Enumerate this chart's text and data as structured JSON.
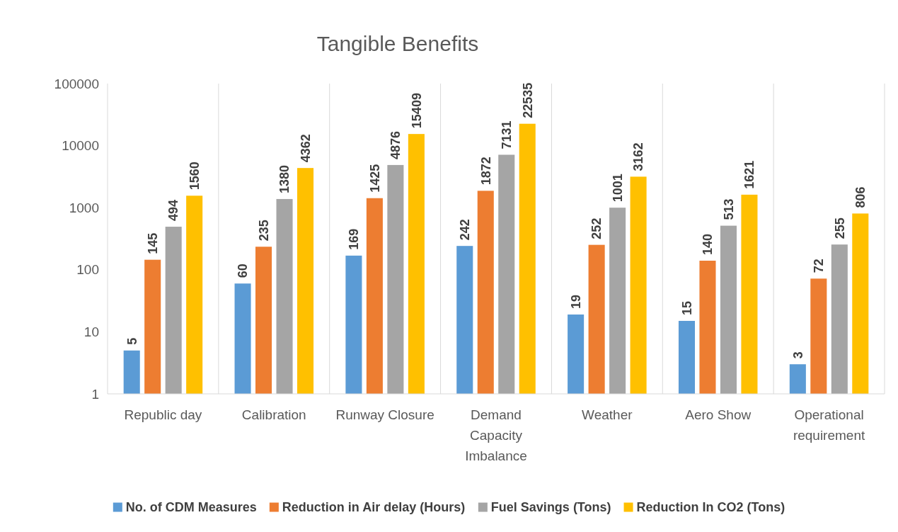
{
  "chart_data": {
    "type": "bar",
    "title": "Tangible Benefits",
    "categories": [
      "Republic day",
      "Calibration",
      "Runway Closure",
      "Demand Capacity Imbalance",
      "Weather",
      "Aero Show",
      "Operational requirement"
    ],
    "series": [
      {
        "name": "No. of CDM Measures",
        "color": "#5b9bd5",
        "values": [
          5,
          60,
          169,
          242,
          19,
          15,
          3
        ]
      },
      {
        "name": "Reduction in Air delay (Hours)",
        "color": "#ed7d31",
        "values": [
          145,
          235,
          1425,
          1872,
          252,
          140,
          72
        ]
      },
      {
        "name": "Fuel Savings (Tons)",
        "color": "#a5a5a5",
        "values": [
          494,
          1380,
          4876,
          7131,
          1001,
          513,
          255
        ]
      },
      {
        "name": "Reduction In CO2 (Tons)",
        "color": "#ffc000",
        "values": [
          1560,
          4362,
          15409,
          22535,
          3162,
          1621,
          806
        ]
      }
    ],
    "log": true,
    "ylim": [
      1,
      100000
    ],
    "yticks": [
      1,
      10,
      100,
      1000,
      10000,
      100000
    ],
    "grid": "x",
    "legend": "bottom",
    "data_labels": true
  }
}
